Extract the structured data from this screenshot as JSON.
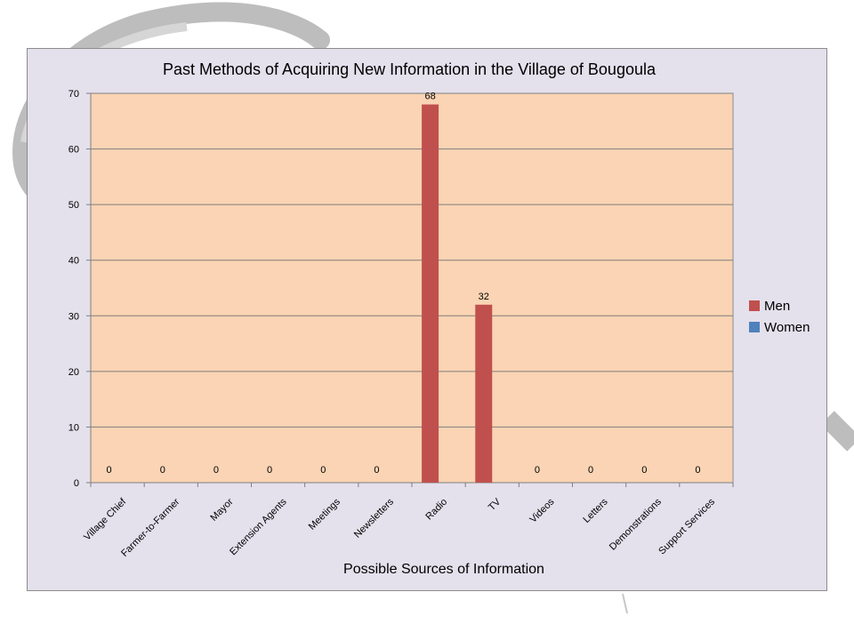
{
  "chart_data": {
    "type": "bar",
    "title": "Past Methods of Acquiring New Information in the Village of Bougoula",
    "xlabel": "Possible Sources of Information",
    "ylabel": "",
    "categories": [
      "Village Chief",
      "Farmer-to-Farmer",
      "Mayor",
      "Extension Agents",
      "Meetings",
      "Newsletters",
      "Radio",
      "TV",
      "Videos",
      "Letters",
      "Demonstrations",
      "Support Services"
    ],
    "series": [
      {
        "name": "Men",
        "color": "#c0504d",
        "values": [
          0,
          0,
          0,
          0,
          0,
          0,
          68,
          32,
          0,
          0,
          0,
          0
        ]
      },
      {
        "name": "Women",
        "color": "#4f81bd",
        "values": [
          0,
          0,
          0,
          0,
          0,
          0,
          0,
          0,
          0,
          0,
          0,
          0
        ]
      }
    ],
    "data_labels": [
      "0",
      "0",
      "0",
      "0",
      "0",
      "0",
      "68",
      "32",
      "0",
      "0",
      "0",
      "0"
    ],
    "ylim": [
      0,
      70
    ],
    "yticks": [
      "0",
      "10",
      "20",
      "30",
      "40",
      "50",
      "60",
      "70"
    ],
    "grid": true,
    "legend_position": "right",
    "plot_background": "#fad4b4",
    "chart_background": "#e4e0ec"
  }
}
